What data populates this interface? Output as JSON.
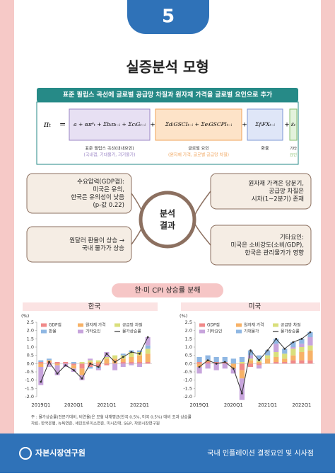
{
  "badge": "5",
  "title": "실증분석 모형",
  "banner": "표준 필립스 곡선에 글로벌 공급망 차질과 원자재 가격을 글로벌 요인으로 추가",
  "formula": {
    "lhs": "πₜ",
    "eq": "=",
    "plus": "+",
    "terms": [
      "a + απᵉₜ + Σbᵢπₜ₋ᵢ + ΣcᵢGₜ₋ᵢ",
      "ΣdᵢGSCIₜ₋ᵢ + ΣeᵢGSCPIₜ₋ᵢ",
      "ΣfᵢFXₜ₋ᵢ",
      "εₜ"
    ],
    "labels": [
      [
        "표준 필립스 곡선(대내요인)",
        "(국내갭, 기대물가, 과거물가)"
      ],
      [
        "글로벌 요인",
        "(원자재 가격, 글로벌 공급망 차질)"
      ],
      [
        "환율"
      ],
      [
        "기타",
        "요인"
      ]
    ]
  },
  "results": {
    "center": [
      "분석",
      "결과"
    ],
    "boxes": [
      [
        "수요압력(GDP갭):",
        "미국은 유의,",
        "한국은 유의성이 낮음",
        "(p-값 0.22)"
      ],
      [
        "원자재 가격은 당분기,",
        "공급망 차질은",
        "시차(1~2분기) 존재"
      ],
      [
        "원달러 환율이 상승 →",
        "국내 물가가 상승"
      ],
      [
        "기타요인:",
        "미국은 소비강도(소비/GDP),",
        "한국은 관리물가가 영향"
      ]
    ]
  },
  "section": "한·미 CPI 상승률 분해",
  "chart_data": [
    {
      "type": "bar",
      "title": "한국",
      "y_label": "(%)",
      "categories": [
        "2019Q1",
        null,
        null,
        null,
        "2020Q1",
        null,
        null,
        null,
        "2021Q1",
        null,
        null,
        null,
        "2022Q1",
        null
      ],
      "ylim": [
        -2,
        2.5
      ],
      "yticks": [
        {
          "value": -2,
          "label": "-2.0"
        },
        -1.5,
        {
          "value": -1,
          "label": "-1.0"
        },
        -0.5,
        {
          "value": 0,
          "label": "0.0"
        },
        0.5,
        {
          "value": 1,
          "label": "1.0"
        },
        1.5,
        {
          "value": 2,
          "label": "2.0"
        },
        2.5
      ],
      "series": [
        {
          "name": "GDP갭",
          "color": "#f08a8a",
          "style": "bar",
          "values": [
            0.1,
            0.1,
            0.1,
            0.1,
            -0.1,
            -0.3,
            -0.2,
            -0.2,
            -0.1,
            0,
            0.1,
            0.1,
            0.1,
            0.1
          ]
        },
        {
          "name": "원자재 가격",
          "color": "#f7b267",
          "style": "bar",
          "values": [
            -0.2,
            0.1,
            -0.1,
            0,
            -0.2,
            -0.4,
            0.1,
            0.1,
            0.3,
            0.3,
            0.2,
            0.3,
            0.4,
            0.5
          ]
        },
        {
          "name": "공급망 차질",
          "color": "#d9df7c",
          "style": "bar",
          "values": [
            0,
            0,
            0,
            0,
            0,
            0.1,
            0.1,
            0.1,
            0.1,
            0.2,
            0.2,
            0.3,
            0.2,
            0.3
          ]
        },
        {
          "name": "환율",
          "color": "#8fb7e3",
          "style": "bar",
          "values": [
            0.1,
            0.1,
            0,
            0,
            0.1,
            0,
            -0.1,
            -0.1,
            0,
            0,
            0.1,
            0.1,
            0.1,
            0.2
          ]
        },
        {
          "name": "기타요인",
          "color": "#c7a4dc",
          "style": "bar",
          "values": [
            -1.1,
            -0.2,
            -0.6,
            -0.2,
            -0.2,
            -0.3,
            0.1,
            -0.1,
            0.3,
            -0.4,
            -0.2,
            -0.1,
            -0.2,
            0.5
          ]
        },
        {
          "name": "물가상승률",
          "color": "#333333",
          "style": "line",
          "values": [
            -1.1,
            0.1,
            -0.6,
            -0.1,
            -0.4,
            -0.9,
            0,
            -0.2,
            0.6,
            0.1,
            0.4,
            0.7,
            0.6,
            1.6
          ]
        }
      ]
    },
    {
      "type": "bar",
      "title": "미국",
      "y_label": "(%)",
      "categories": [
        "2019Q1",
        null,
        null,
        null,
        "2020Q1",
        null,
        null,
        null,
        "2021Q1",
        null,
        null,
        null,
        "2022Q1",
        null
      ],
      "ylim": [
        -2,
        2.5
      ],
      "yticks": [
        {
          "value": -2,
          "label": "-2.0"
        },
        -1.5,
        {
          "value": -1,
          "label": "-1.0"
        },
        -0.5,
        {
          "value": 0,
          "label": "0.0"
        },
        0.5,
        {
          "value": 1,
          "label": "1.0"
        },
        1.5,
        {
          "value": 2,
          "label": "2.0"
        },
        2.5
      ],
      "series": [
        {
          "name": "GDP갭",
          "color": "#f08a8a",
          "style": "bar",
          "values": [
            0.1,
            0.1,
            0.1,
            0.1,
            0,
            -0.4,
            -0.2,
            -0.1,
            0,
            0.1,
            0.1,
            0.2,
            0.2,
            0.2
          ]
        },
        {
          "name": "원자재 가격",
          "color": "#f7b267",
          "style": "bar",
          "values": [
            -0.2,
            0.1,
            0,
            0,
            -0.3,
            -0.5,
            0.2,
            0.1,
            0.3,
            0.3,
            0.2,
            0.3,
            0.5,
            0.6
          ]
        },
        {
          "name": "공급망 차질",
          "color": "#d9df7c",
          "style": "bar",
          "values": [
            0,
            0,
            0,
            0,
            0,
            0.1,
            0.1,
            0.1,
            0.2,
            0.3,
            0.3,
            0.4,
            0.3,
            0.3
          ]
        },
        {
          "name": "기타요인",
          "color": "#c7a4dc",
          "style": "bar",
          "values": [
            -0.4,
            -0.3,
            -0.4,
            -0.3,
            -0.3,
            -1.3,
            0.2,
            -0.2,
            0,
            0.5,
            0,
            0.1,
            0.2,
            0.5
          ]
        },
        {
          "name": "기대물가",
          "color": "#8fb7e3",
          "style": "bar",
          "values": [
            0.3,
            0.3,
            0.3,
            0.3,
            0.3,
            0.3,
            0.3,
            0.3,
            0.3,
            0.3,
            0.3,
            0.3,
            0.3,
            0.3
          ]
        },
        {
          "name": "물가상승률",
          "color": "#333333",
          "style": "line",
          "values": [
            -0.2,
            0.2,
            0,
            0.1,
            -0.3,
            -1.8,
            0.8,
            0.2,
            0.8,
            1.5,
            0.9,
            1.3,
            1.5,
            1.9
          ]
        }
      ]
    }
  ],
  "notes": [
    "주 : 물가상승률(전분기대비, 비연율)은 모형 내재평균(한국 0.5%, 미국 0.5%) 대비 초과 상승률",
    "자료: 한국은행, 뉴욕연준, 세인트루이스연준, 미시간대, S&P, 자본시장연구원"
  ],
  "footer": {
    "org": "자본시장연구원",
    "title": "국내 인플레이션 결정요인 및 시사점"
  }
}
